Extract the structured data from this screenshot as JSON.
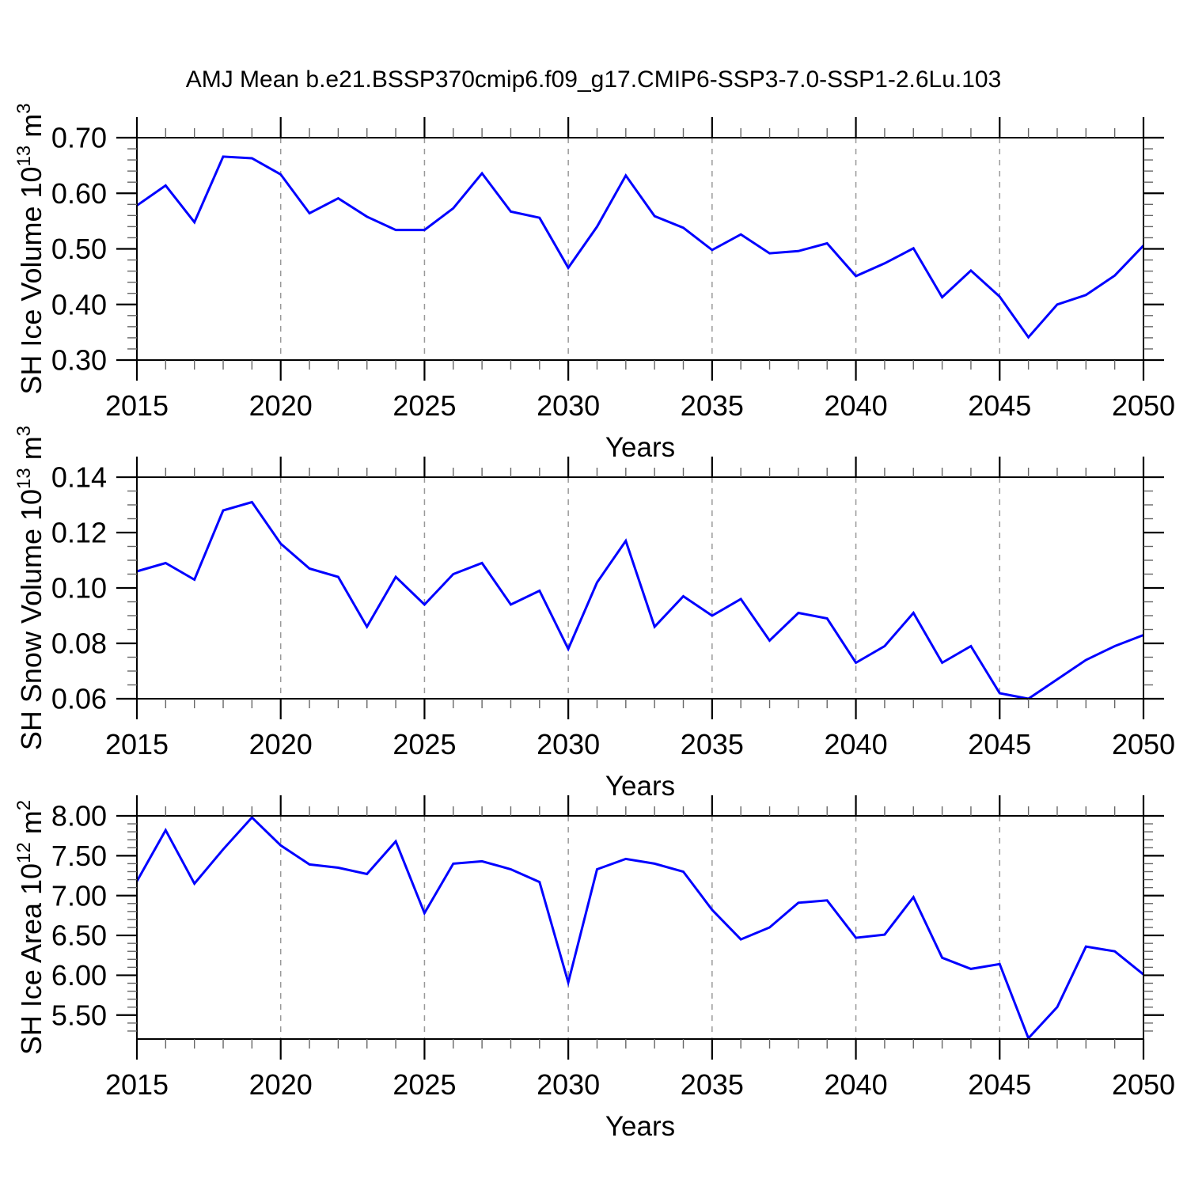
{
  "title": "AMJ Mean b.e21.BSSP370cmip6.f09_g17.CMIP6-SSP3-7.0-SSP1-2.6Lu.103",
  "colors": {
    "line": "#0000ff",
    "axis": "#000000",
    "grid": "#999999",
    "minor_tick": "#666666",
    "background": "#ffffff"
  },
  "chart_data": [
    {
      "type": "line",
      "name": "sh-ice-volume",
      "ylabel_segments": [
        {
          "t": "SH Ice Volume 10"
        },
        {
          "sup": "13"
        },
        {
          "t": " m"
        },
        {
          "sup": "3"
        }
      ],
      "xlabel": "Years",
      "x": [
        2015,
        2016,
        2017,
        2018,
        2019,
        2020,
        2021,
        2022,
        2023,
        2024,
        2025,
        2026,
        2027,
        2028,
        2029,
        2030,
        2031,
        2032,
        2033,
        2034,
        2035,
        2036,
        2037,
        2038,
        2039,
        2040,
        2041,
        2042,
        2043,
        2044,
        2045,
        2046,
        2047,
        2048,
        2049,
        2050
      ],
      "values": [
        0.578,
        0.614,
        0.548,
        0.666,
        0.663,
        0.634,
        0.564,
        0.591,
        0.558,
        0.534,
        0.534,
        0.573,
        0.636,
        0.567,
        0.556,
        0.466,
        0.54,
        0.632,
        0.559,
        0.538,
        0.498,
        0.526,
        0.492,
        0.496,
        0.51,
        0.451,
        0.474,
        0.501,
        0.413,
        0.461,
        0.414,
        0.341,
        0.4,
        0.417,
        0.452,
        0.506
      ],
      "xlim": [
        2015,
        2050
      ],
      "ylim": [
        0.3,
        0.7
      ],
      "xticks": [
        {
          "v": 2015,
          "label": "2015"
        },
        {
          "v": 2020,
          "label": "2020"
        },
        {
          "v": 2025,
          "label": "2025"
        },
        {
          "v": 2030,
          "label": "2030"
        },
        {
          "v": 2035,
          "label": "2035"
        },
        {
          "v": 2040,
          "label": "2040"
        },
        {
          "v": 2045,
          "label": "2045"
        },
        {
          "v": 2050,
          "label": "2050"
        }
      ],
      "yticks": [
        {
          "v": 0.3,
          "label": "0.30"
        },
        {
          "v": 0.4,
          "label": "0.40"
        },
        {
          "v": 0.5,
          "label": "0.50"
        },
        {
          "v": 0.6,
          "label": "0.60"
        },
        {
          "v": 0.7,
          "label": "0.70"
        }
      ],
      "xminor_step": 1,
      "yminor_step": 0.02,
      "grid": "vertical-dashed-at-x-majors"
    },
    {
      "type": "line",
      "name": "sh-snow-volume",
      "ylabel_segments": [
        {
          "t": "SH Snow Volume 10"
        },
        {
          "sup": "13"
        },
        {
          "t": " m"
        },
        {
          "sup": "3"
        }
      ],
      "xlabel": "Years",
      "x": [
        2015,
        2016,
        2017,
        2018,
        2019,
        2020,
        2021,
        2022,
        2023,
        2024,
        2025,
        2026,
        2027,
        2028,
        2029,
        2030,
        2031,
        2032,
        2033,
        2034,
        2035,
        2036,
        2037,
        2038,
        2039,
        2040,
        2041,
        2042,
        2043,
        2044,
        2045,
        2046,
        2047,
        2048,
        2049,
        2050
      ],
      "values": [
        0.106,
        0.109,
        0.103,
        0.128,
        0.131,
        0.116,
        0.107,
        0.104,
        0.086,
        0.104,
        0.094,
        0.105,
        0.109,
        0.094,
        0.099,
        0.078,
        0.102,
        0.117,
        0.086,
        0.097,
        0.09,
        0.096,
        0.081,
        0.091,
        0.089,
        0.073,
        0.079,
        0.091,
        0.073,
        0.079,
        0.062,
        0.06,
        0.067,
        0.074,
        0.079,
        0.083
      ],
      "xlim": [
        2015,
        2050
      ],
      "ylim": [
        0.06,
        0.14
      ],
      "xticks": [
        {
          "v": 2015,
          "label": "2015"
        },
        {
          "v": 2020,
          "label": "2020"
        },
        {
          "v": 2025,
          "label": "2025"
        },
        {
          "v": 2030,
          "label": "2030"
        },
        {
          "v": 2035,
          "label": "2035"
        },
        {
          "v": 2040,
          "label": "2040"
        },
        {
          "v": 2045,
          "label": "2045"
        },
        {
          "v": 2050,
          "label": "2050"
        }
      ],
      "yticks": [
        {
          "v": 0.06,
          "label": "0.06"
        },
        {
          "v": 0.08,
          "label": "0.08"
        },
        {
          "v": 0.1,
          "label": "0.10"
        },
        {
          "v": 0.12,
          "label": "0.12"
        },
        {
          "v": 0.14,
          "label": "0.14"
        }
      ],
      "xminor_step": 1,
      "yminor_step": 0.005,
      "grid": "vertical-dashed-at-x-majors"
    },
    {
      "type": "line",
      "name": "sh-ice-area",
      "ylabel_segments": [
        {
          "t": "SH Ice Area 10"
        },
        {
          "sup": "12"
        },
        {
          "t": " m"
        },
        {
          "sup": "2"
        }
      ],
      "xlabel": "Years",
      "x": [
        2015,
        2016,
        2017,
        2018,
        2019,
        2020,
        2021,
        2022,
        2023,
        2024,
        2025,
        2026,
        2027,
        2028,
        2029,
        2030,
        2031,
        2032,
        2033,
        2034,
        2035,
        2036,
        2037,
        2038,
        2039,
        2040,
        2041,
        2042,
        2043,
        2044,
        2045,
        2046,
        2047,
        2048,
        2049,
        2050
      ],
      "values": [
        7.18,
        7.82,
        7.15,
        7.58,
        7.98,
        7.63,
        7.39,
        7.35,
        7.27,
        7.68,
        6.78,
        7.4,
        7.43,
        7.33,
        7.17,
        5.91,
        7.33,
        7.46,
        7.4,
        7.3,
        6.82,
        6.45,
        6.6,
        6.91,
        6.94,
        6.47,
        6.51,
        6.98,
        6.22,
        6.08,
        6.14,
        5.21,
        5.6,
        6.36,
        6.3,
        6.01
      ],
      "xlim": [
        2015,
        2050
      ],
      "ylim": [
        5.2,
        8.0
      ],
      "xticks": [
        {
          "v": 2015,
          "label": "2015"
        },
        {
          "v": 2020,
          "label": "2020"
        },
        {
          "v": 2025,
          "label": "2025"
        },
        {
          "v": 2030,
          "label": "2030"
        },
        {
          "v": 2035,
          "label": "2035"
        },
        {
          "v": 2040,
          "label": "2040"
        },
        {
          "v": 2045,
          "label": "2045"
        },
        {
          "v": 2050,
          "label": "2050"
        }
      ],
      "yticks": [
        {
          "v": 5.5,
          "label": "5.50"
        },
        {
          "v": 6.0,
          "label": "6.00"
        },
        {
          "v": 6.5,
          "label": "6.50"
        },
        {
          "v": 7.0,
          "label": "7.00"
        },
        {
          "v": 7.5,
          "label": "7.50"
        },
        {
          "v": 8.0,
          "label": "8.00"
        }
      ],
      "xminor_step": 1,
      "yminor_step": 0.1,
      "grid": "vertical-dashed-at-x-majors"
    }
  ]
}
